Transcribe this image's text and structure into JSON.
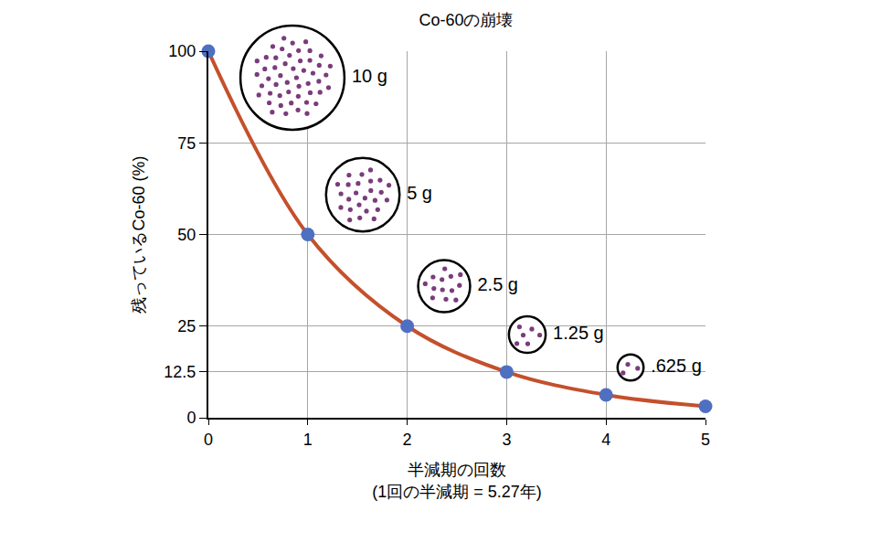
{
  "chart_data": {
    "type": "line",
    "title": "Co-60の崩壊",
    "xlabel": [
      "半減期の回数",
      "(1回の半減期 = 5.27年)"
    ],
    "ylabel": "残っているCo-60 (%)",
    "x": [
      0,
      1,
      2,
      3,
      4,
      5
    ],
    "values": [
      100,
      50,
      25,
      12.5,
      6.25,
      3.125
    ],
    "color": "#c4502c",
    "marker": "circle",
    "line_style": "solid",
    "xlim": [
      0,
      5
    ],
    "xticks": [
      0,
      1,
      2,
      3,
      4,
      5
    ],
    "ylim": [
      0,
      100
    ],
    "yticks": [
      0,
      12.5,
      25,
      50,
      75,
      100
    ],
    "grid": true,
    "annotations": [
      {
        "value": 10,
        "label": "10 g"
      },
      {
        "value": 5,
        "label": "5 g"
      },
      {
        "value": 2.5,
        "label": "2.5 g"
      },
      {
        "value": 1.25,
        "label": "1.25 g"
      },
      {
        "value": 0.625,
        "label": ".625 g"
      }
    ]
  }
}
